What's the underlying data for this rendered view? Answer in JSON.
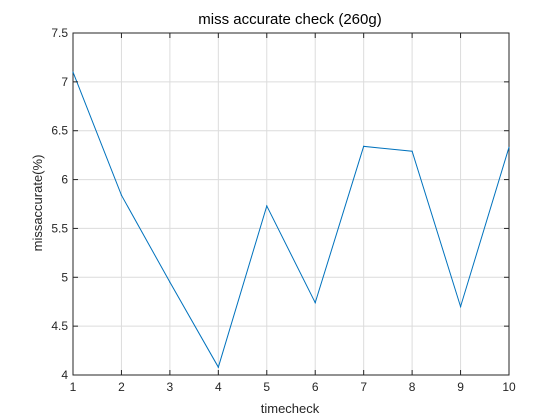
{
  "chart_data": {
    "type": "line",
    "title": "miss accurate check (260g)",
    "xlabel": "timecheck",
    "ylabel": "missaccurate(%)",
    "xlim": [
      1,
      10
    ],
    "ylim": [
      4,
      7.5
    ],
    "xticks": [
      1,
      2,
      3,
      4,
      5,
      6,
      7,
      8,
      9,
      10
    ],
    "yticks": [
      4,
      4.5,
      5,
      5.5,
      6,
      6.5,
      7,
      7.5
    ],
    "ytick_labels": [
      "4",
      "4.5",
      "5",
      "5.5",
      "6",
      "6.5",
      "7",
      "7.5"
    ],
    "grid": true,
    "series": [
      {
        "x": [
          1,
          2,
          3,
          4,
          5,
          6,
          7,
          8,
          9,
          10
        ],
        "values": [
          7.1,
          5.84,
          4.95,
          4.08,
          5.73,
          4.74,
          6.34,
          6.29,
          4.7,
          6.33
        ],
        "color": "#0072BD"
      }
    ]
  }
}
